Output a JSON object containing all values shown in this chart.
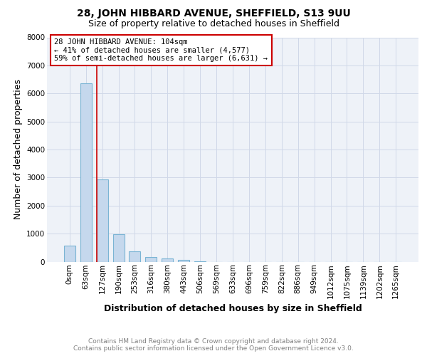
{
  "title": "28, JOHN HIBBARD AVENUE, SHEFFIELD, S13 9UU",
  "subtitle": "Size of property relative to detached houses in Sheffield",
  "xlabel": "Distribution of detached houses by size in Sheffield",
  "ylabel": "Number of detached properties",
  "bar_labels": [
    "0sqm",
    "63sqm",
    "127sqm",
    "190sqm",
    "253sqm",
    "316sqm",
    "380sqm",
    "443sqm",
    "506sqm",
    "569sqm",
    "633sqm",
    "696sqm",
    "759sqm",
    "822sqm",
    "886sqm",
    "949sqm",
    "1012sqm",
    "1075sqm",
    "1139sqm",
    "1202sqm",
    "1265sqm"
  ],
  "bar_values": [
    560,
    6350,
    2930,
    970,
    370,
    165,
    110,
    60,
    20,
    0,
    0,
    0,
    0,
    0,
    0,
    0,
    0,
    0,
    0,
    0,
    0
  ],
  "bar_color": "#c5d8ed",
  "bar_edge_color": "#7ab4d4",
  "bar_linewidth": 0.8,
  "ylim_max": 8000,
  "yticks": [
    0,
    1000,
    2000,
    3000,
    4000,
    5000,
    6000,
    7000,
    8000
  ],
  "property_sqm": 104,
  "bin_width": 63,
  "red_line_color": "#cc0000",
  "annotation_line1": "28 JOHN HIBBARD AVENUE: 104sqm",
  "annotation_line2": "← 41% of detached houses are smaller (4,577)",
  "annotation_line3": "59% of semi-detached houses are larger (6,631) →",
  "annotation_box_color": "#cc0000",
  "annotation_bg": "white",
  "footer_line1": "Contains HM Land Registry data © Crown copyright and database right 2024.",
  "footer_line2": "Contains public sector information licensed under the Open Government Licence v3.0.",
  "grid_color": "#d0d8e8",
  "background_color": "#eef2f8",
  "title_fontsize": 10,
  "subtitle_fontsize": 9,
  "axis_label_fontsize": 9,
  "tick_fontsize": 7.5,
  "annotation_fontsize": 7.5,
  "footer_fontsize": 6.5
}
